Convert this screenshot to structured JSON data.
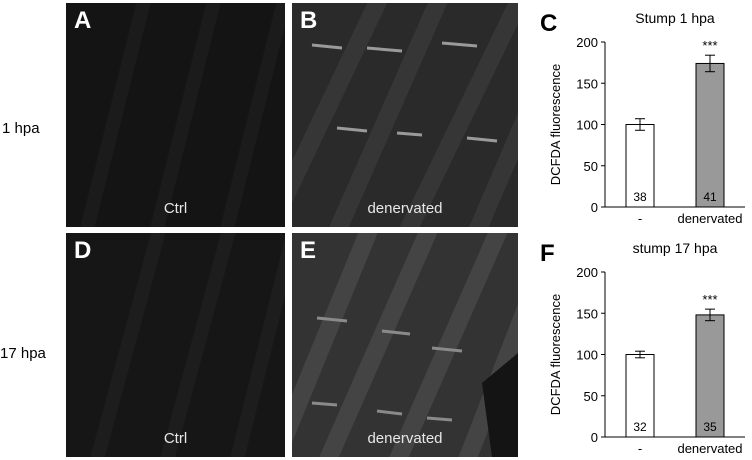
{
  "rows": [
    {
      "label": "1 hpa"
    },
    {
      "label": "17 hpa"
    }
  ],
  "panels": [
    {
      "letter": "A",
      "caption": "Ctrl"
    },
    {
      "letter": "B",
      "caption": "denervated"
    },
    {
      "letter": "D",
      "caption": "Ctrl"
    },
    {
      "letter": "E",
      "caption": "denervated"
    }
  ],
  "chart_data": [
    {
      "type": "bar",
      "panel_letter": "C",
      "title": "Stump 1 hpa",
      "ylabel": "DCFDA fluorescence",
      "xlabel": "",
      "ylim": [
        0,
        200
      ],
      "yticks": [
        0,
        50,
        100,
        150,
        200
      ],
      "categories": [
        "-",
        "denervated"
      ],
      "values": [
        100,
        174
      ],
      "errors": [
        7,
        10
      ],
      "n_labels": [
        "38",
        "41"
      ],
      "significance": [
        "",
        "***"
      ],
      "bar_colors": [
        "#ffffff",
        "#999999"
      ]
    },
    {
      "type": "bar",
      "panel_letter": "F",
      "title": "stump 17 hpa",
      "ylabel": "DCFDA fluorescence",
      "xlabel": "",
      "ylim": [
        0,
        200
      ],
      "yticks": [
        0,
        50,
        100,
        150,
        200
      ],
      "categories": [
        "-",
        "denervated"
      ],
      "values": [
        100,
        148
      ],
      "errors": [
        4,
        7
      ],
      "n_labels": [
        "32",
        "35"
      ],
      "significance": [
        "",
        "***"
      ],
      "bar_colors": [
        "#ffffff",
        "#999999"
      ]
    }
  ]
}
